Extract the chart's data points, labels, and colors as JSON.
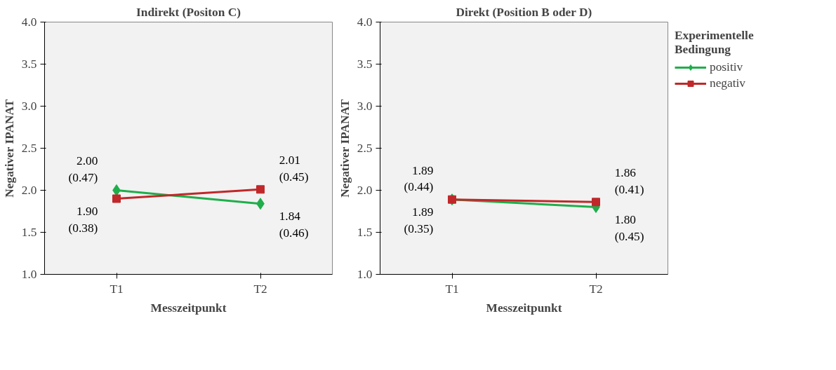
{
  "chart_data": [
    {
      "type": "line",
      "title": "Indirekt (Positon C)",
      "xlabel": "Messzeitpunkt",
      "ylabel": "Negativer IPANAT",
      "categories": [
        "T1",
        "T2"
      ],
      "ylim": [
        1.0,
        4.0
      ],
      "yticks": [
        "1.0",
        "1.5",
        "2.0",
        "2.5",
        "3.0",
        "3.5",
        "4.0"
      ],
      "grid": false,
      "legend": false,
      "series": [
        {
          "color": "#1fae4b",
          "marker": "diamond",
          "values": [
            2.0,
            1.84
          ],
          "value_labels": [
            "2.00\n(0.47)",
            "1.84\n(0.46)"
          ]
        },
        {
          "color": "#c0282a",
          "marker": "square",
          "values": [
            1.9,
            2.01
          ],
          "value_labels": [
            "1.90\n(0.38)",
            "2.01\n(0.45)"
          ]
        }
      ]
    },
    {
      "type": "line",
      "title": "Direkt (Position B oder D)",
      "xlabel": "Messzeitpunkt",
      "ylabel": "Negativer IPANAT",
      "legend_title": "Experimentelle\nBedingung",
      "categories": [
        "T1",
        "T2"
      ],
      "ylim": [
        1.0,
        4.0
      ],
      "yticks": [
        "1.0",
        "1.5",
        "2.0",
        "2.5",
        "3.0",
        "3.5",
        "4.0"
      ],
      "grid": false,
      "legend": "right",
      "series": [
        {
          "name": "positiv",
          "color": "#1fae4b",
          "marker": "diamond",
          "values": [
            1.89,
            1.8
          ],
          "value_labels": [
            "1.89\n(0.35)",
            "1.80\n(0.45)"
          ]
        },
        {
          "name": "negativ",
          "color": "#c0282a",
          "marker": "square",
          "values": [
            1.89,
            1.86
          ],
          "value_labels": [
            "1.89\n(0.44)",
            "1.86\n(0.41)"
          ]
        }
      ]
    }
  ]
}
